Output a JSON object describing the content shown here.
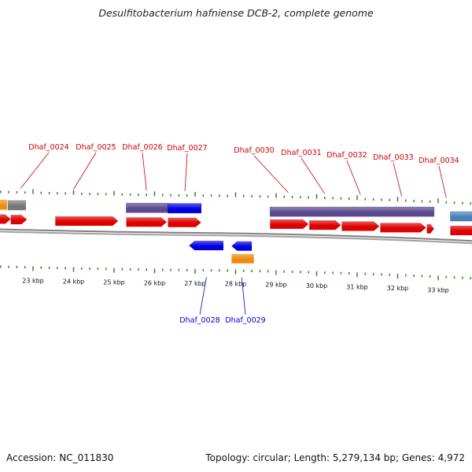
{
  "title": "Desulfitobacterium hafniense DCB-2, complete genome",
  "footer": {
    "accession": "Accession: NC_011830",
    "summary": "Topology: circular; Length: 5,279,134 bp; Genes: 4,972"
  },
  "colors": {
    "cds": "#dd0000",
    "cds_reverse": "#0000dd",
    "feature_purple": "#5a4a90",
    "feature_orange": "#f08a10",
    "feature_gray": "#777777",
    "feature_steel": "#4a80b8",
    "tick": "#2a8a1a",
    "backbone": "#808080",
    "label_top": "#cc0000",
    "label_bottom": "#0000cc"
  },
  "chart_data": {
    "type": "genome-map",
    "axis_unit": "kbp",
    "axis_range": [
      22,
      34.2
    ],
    "tick_labels": [
      "23 kbp",
      "24 kbp",
      "25 kbp",
      "26 kbp",
      "27 kbp",
      "28 kbp",
      "29 kbp",
      "30 kbp",
      "31 kbp",
      "32 kbp",
      "33 kbp"
    ],
    "tick_values": [
      23,
      24,
      25,
      26,
      27,
      28,
      29,
      30,
      31,
      32,
      33
    ],
    "genes_forward": [
      {
        "start": 22.0,
        "end": 22.45
      },
      {
        "start": 22.45,
        "end": 22.85
      },
      {
        "start": 23.55,
        "end": 25.1
      },
      {
        "start": 25.3,
        "end": 26.3
      },
      {
        "start": 26.33,
        "end": 27.15
      },
      {
        "start": 28.85,
        "end": 29.8
      },
      {
        "start": 29.82,
        "end": 30.6
      },
      {
        "start": 30.62,
        "end": 31.55
      },
      {
        "start": 31.57,
        "end": 32.7
      },
      {
        "start": 32.72,
        "end": 32.9
      },
      {
        "start": 33.3,
        "end": 34.2
      }
    ],
    "genes_reverse": [
      {
        "start": 26.85,
        "end": 27.7
      },
      {
        "start": 27.9,
        "end": 28.4
      }
    ],
    "features_top": [
      {
        "start": 22.0,
        "end": 22.35,
        "kind": "feature_orange"
      },
      {
        "start": 22.38,
        "end": 22.82,
        "kind": "feature_gray"
      },
      {
        "start": 25.3,
        "end": 26.33,
        "kind": "feature_purple"
      },
      {
        "start": 26.33,
        "end": 27.15,
        "kind": "cds_reverse"
      },
      {
        "start": 28.85,
        "end": 32.9,
        "kind": "feature_purple"
      },
      {
        "start": 33.3,
        "end": 34.2,
        "kind": "feature_steel"
      }
    ],
    "features_bottom": [
      {
        "start": 27.9,
        "end": 28.45,
        "kind": "feature_orange"
      }
    ],
    "labels_top": [
      {
        "text": "Dhaf_0024",
        "pos": 22.7
      },
      {
        "text": "Dhaf_0025",
        "pos": 24.0
      },
      {
        "text": "Dhaf_0026",
        "pos": 25.8
      },
      {
        "text": "Dhaf_0027",
        "pos": 26.75
      },
      {
        "text": "Dhaf_0030",
        "pos": 29.3
      },
      {
        "text": "Dhaf_0031",
        "pos": 30.2
      },
      {
        "text": "Dhaf_0032",
        "pos": 31.08
      },
      {
        "text": "Dhaf_0033",
        "pos": 32.1
      },
      {
        "text": "Dhaf_0034",
        "pos": 33.2
      }
    ],
    "labels_bottom": [
      {
        "text": "Dhaf_0028",
        "pos": 27.28
      },
      {
        "text": "Dhaf_0029",
        "pos": 28.15
      }
    ]
  }
}
